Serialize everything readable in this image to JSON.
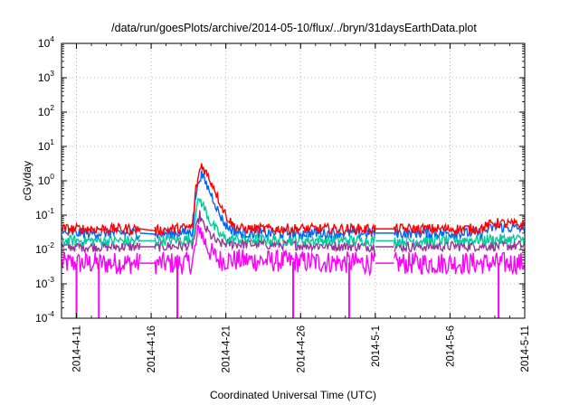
{
  "chart_data": {
    "type": "line",
    "title": "/data/run/goesPlots/archive/2014-05-10/flux/../bryn/31daysEarthData.plot",
    "xlabel": "Coordinated Universal Time (UTC)",
    "ylabel": "cGy/day",
    "yscale": "log",
    "ylim": [
      0.0001,
      10000
    ],
    "xlim": [
      "2014-04-10",
      "2014-05-11"
    ],
    "grid": true,
    "y_ticks": [
      {
        "base": "10",
        "exp": "-4",
        "value": 0.0001
      },
      {
        "base": "10",
        "exp": "-3",
        "value": 0.001
      },
      {
        "base": "10",
        "exp": "-2",
        "value": 0.01
      },
      {
        "base": "10",
        "exp": "-1",
        "value": 0.1
      },
      {
        "base": "10",
        "exp": "0",
        "value": 1
      },
      {
        "base": "10",
        "exp": "1",
        "value": 10
      },
      {
        "base": "10",
        "exp": "2",
        "value": 100
      },
      {
        "base": "10",
        "exp": "3",
        "value": 1000
      },
      {
        "base": "10",
        "exp": "4",
        "value": 10000
      }
    ],
    "x_ticks": [
      {
        "label": "2014-4-11",
        "date": "2014-04-11"
      },
      {
        "label": "2014-4-16",
        "date": "2014-04-16"
      },
      {
        "label": "2014-4-21",
        "date": "2014-04-21"
      },
      {
        "label": "2014-4-26",
        "date": "2014-04-26"
      },
      {
        "label": "2014-5-1",
        "date": "2014-05-01"
      },
      {
        "label": "2014-5-6",
        "date": "2014-05-06"
      },
      {
        "label": "2014-5-11",
        "date": "2014-05-11"
      }
    ],
    "data_gaps": [
      {
        "from": "2014-04-15T06:00",
        "to": "2014-04-16T06:00"
      },
      {
        "from": "2014-05-01T00:00",
        "to": "2014-05-02T06:00"
      }
    ],
    "series": [
      {
        "color": "#ff0000",
        "band": [
          0.025,
          0.05
        ],
        "points": [
          [
            "2014-04-10T00:00",
            0.04
          ],
          [
            "2014-04-15T06:00",
            0.04
          ],
          [
            "2014-04-16T06:00",
            0.035
          ],
          [
            "2014-04-18T18:00",
            0.045
          ],
          [
            "2014-04-19T00:00",
            0.6
          ],
          [
            "2014-04-19T06:00",
            2.0
          ],
          [
            "2014-04-19T09:00",
            3.0
          ],
          [
            "2014-04-19T18:00",
            1.5
          ],
          [
            "2014-04-20T06:00",
            0.6
          ],
          [
            "2014-04-20T12:00",
            0.3
          ],
          [
            "2014-04-21T00:00",
            0.1
          ],
          [
            "2014-04-21T12:00",
            0.05
          ],
          [
            "2014-04-22T00:00",
            0.04
          ],
          [
            "2014-05-01T00:00",
            0.04
          ],
          [
            "2014-05-02T06:00",
            0.04
          ],
          [
            "2014-05-08T00:00",
            0.04
          ],
          [
            "2014-05-09T00:00",
            0.06
          ],
          [
            "2014-05-11T00:00",
            0.05
          ]
        ]
      },
      {
        "color": "#0066ff",
        "band": [
          0.02,
          0.04
        ],
        "points": [
          [
            "2014-04-10T00:00",
            0.03
          ],
          [
            "2014-04-15T06:00",
            0.03
          ],
          [
            "2014-04-16T06:00",
            0.028
          ],
          [
            "2014-04-18T18:00",
            0.032
          ],
          [
            "2014-04-19T00:00",
            0.4
          ],
          [
            "2014-04-19T06:00",
            1.3
          ],
          [
            "2014-04-19T09:00",
            1.5
          ],
          [
            "2014-04-19T18:00",
            0.7
          ],
          [
            "2014-04-20T06:00",
            0.25
          ],
          [
            "2014-04-20T12:00",
            0.12
          ],
          [
            "2014-04-21T00:00",
            0.05
          ],
          [
            "2014-04-21T12:00",
            0.035
          ],
          [
            "2014-04-22T00:00",
            0.03
          ],
          [
            "2014-05-01T00:00",
            0.03
          ],
          [
            "2014-05-02T06:00",
            0.03
          ],
          [
            "2014-05-08T00:00",
            0.03
          ],
          [
            "2014-05-09T00:00",
            0.045
          ],
          [
            "2014-05-11T00:00",
            0.04
          ]
        ]
      },
      {
        "color": "#00cc99",
        "band": [
          0.012,
          0.025
        ],
        "points": [
          [
            "2014-04-10T00:00",
            0.018
          ],
          [
            "2014-04-15T06:00",
            0.018
          ],
          [
            "2014-04-16T06:00",
            0.018
          ],
          [
            "2014-04-18T18:00",
            0.02
          ],
          [
            "2014-04-19T00:00",
            0.15
          ],
          [
            "2014-04-19T06:00",
            0.3
          ],
          [
            "2014-04-19T12:00",
            0.18
          ],
          [
            "2014-04-20T00:00",
            0.06
          ],
          [
            "2014-04-20T12:00",
            0.03
          ],
          [
            "2014-04-21T00:00",
            0.02
          ],
          [
            "2014-05-01T00:00",
            0.018
          ],
          [
            "2014-05-02T06:00",
            0.018
          ],
          [
            "2014-05-11T00:00",
            0.02
          ]
        ]
      },
      {
        "color": "#993399",
        "band": [
          0.008,
          0.016
        ],
        "points": [
          [
            "2014-04-10T00:00",
            0.012
          ],
          [
            "2014-04-15T06:00",
            0.012
          ],
          [
            "2014-04-16T06:00",
            0.012
          ],
          [
            "2014-04-18T18:00",
            0.013
          ],
          [
            "2014-04-19T06:00",
            0.1
          ],
          [
            "2014-04-19T12:00",
            0.05
          ],
          [
            "2014-04-20T00:00",
            0.025
          ],
          [
            "2014-04-20T12:00",
            0.015
          ],
          [
            "2014-05-01T00:00",
            0.012
          ],
          [
            "2014-05-02T06:00",
            0.012
          ],
          [
            "2014-05-11T00:00",
            0.013
          ]
        ]
      },
      {
        "color": "#ff00ff",
        "band": [
          0.0022,
          0.01
        ],
        "points": [
          [
            "2014-04-10T00:00",
            0.004
          ],
          [
            "2014-04-15T06:00",
            0.004
          ],
          [
            "2014-04-16T06:00",
            0.004
          ],
          [
            "2014-04-18T18:00",
            0.004
          ],
          [
            "2014-04-19T06:00",
            0.05
          ],
          [
            "2014-04-19T12:00",
            0.02
          ],
          [
            "2014-04-20T00:00",
            0.008
          ],
          [
            "2014-04-20T12:00",
            0.005
          ],
          [
            "2014-05-01T00:00",
            0.004
          ],
          [
            "2014-05-02T06:00",
            0.004
          ],
          [
            "2014-05-11T00:00",
            0.004
          ]
        ],
        "dropouts": [
          "2014-04-11T00:00",
          "2014-04-12T12:00",
          "2014-04-17T18:00",
          "2014-04-25T12:00",
          "2014-04-29T06:00",
          "2014-05-09T06:00"
        ]
      }
    ]
  }
}
